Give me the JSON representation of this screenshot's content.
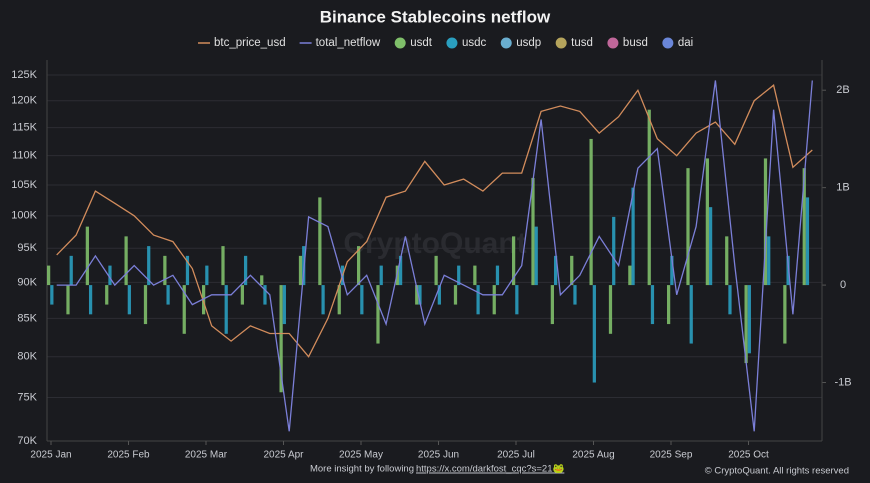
{
  "chart_data": {
    "type": "combo",
    "title": "Binance Stablecoins netflow",
    "annotations": [
      "More insight by following ",
      "https://x.com/darkfost_cqc?s=21🐸",
      "© CryptoQuant. All rights reserved",
      "CryptoQuant"
    ],
    "categories": [
      "2025 Jan",
      null,
      null,
      null,
      "2025 Feb",
      null,
      null,
      null,
      "2025 Mar",
      null,
      null,
      null,
      "2025 Apr",
      null,
      null,
      null,
      "2025 May",
      null,
      null,
      null,
      "2025 Jun",
      null,
      null,
      null,
      "2025 Jul",
      null,
      null,
      null,
      "2025 Aug",
      null,
      null,
      null,
      "2025 Sep",
      null,
      null,
      null,
      "2025 Oct",
      null,
      null,
      null
    ],
    "log_scale": true,
    "grid": true,
    "ylim": [
      70000,
      128000
    ],
    "yticks": [
      {
        "value": 70000,
        "label": "70K"
      },
      {
        "value": 75000,
        "label": "75K"
      },
      {
        "value": 80000,
        "label": "80K"
      },
      {
        "value": 85000,
        "label": "85K"
      },
      {
        "value": 90000,
        "label": "90K"
      },
      {
        "value": 95000,
        "label": "95K"
      },
      {
        "value": 100000,
        "label": "100K"
      },
      {
        "value": 105000,
        "label": "105K"
      },
      {
        "value": 110000,
        "label": "110K"
      },
      {
        "value": 115000,
        "label": "115K"
      },
      {
        "value": 120000,
        "label": "120K"
      },
      {
        "value": 125000,
        "label": "125K"
      }
    ],
    "y2lim": [
      -1600000000,
      2310000000
    ],
    "y2ticks": [
      {
        "value": -1000000000,
        "label": "-1B"
      },
      0,
      {
        "value": 1000000000,
        "label": "1B"
      },
      {
        "value": 2000000000,
        "label": "2B"
      }
    ],
    "series": [
      {
        "name": "btc_price_usd",
        "type": "line",
        "axis": "y",
        "color": "#d28c5c",
        "values": [
          94000,
          97000,
          104000,
          102000,
          100000,
          97000,
          96000,
          92000,
          84000,
          82000,
          84000,
          83000,
          83000,
          80000,
          85000,
          93000,
          96000,
          103000,
          104000,
          109000,
          105000,
          106000,
          104000,
          107000,
          107000,
          118000,
          119000,
          118000,
          114000,
          117000,
          122000,
          113000,
          110000,
          114000,
          116000,
          112000,
          120000,
          123000,
          108000,
          111000
        ]
      },
      {
        "name": "total_netflow",
        "type": "line",
        "axis": "y2",
        "color": "#7b7fd8",
        "values": [
          0,
          0,
          300000000,
          0,
          200000000,
          0,
          100000000,
          -200000000,
          -100000000,
          -100000000,
          100000000,
          -100000000,
          -1500000000,
          700000000,
          600000000,
          -100000000,
          100000000,
          -400000000,
          500000000,
          -400000000,
          100000000,
          0,
          -100000000,
          -100000000,
          200000000,
          1700000000,
          -100000000,
          100000000,
          500000000,
          200000000,
          1200000000,
          1400000000,
          -100000000,
          600000000,
          2100000000,
          200000000,
          -1500000000,
          1800000000,
          -300000000,
          2100000000
        ]
      },
      {
        "name": "usdt",
        "type": "bar",
        "axis": "y2",
        "color": "#7fbf6a",
        "values": [
          200000000,
          -300000000,
          600000000,
          -200000000,
          500000000,
          -400000000,
          300000000,
          -500000000,
          -300000000,
          400000000,
          -200000000,
          100000000,
          -1100000000,
          300000000,
          900000000,
          -300000000,
          400000000,
          -600000000,
          200000000,
          -200000000,
          300000000,
          -200000000,
          200000000,
          -300000000,
          500000000,
          1100000000,
          -400000000,
          300000000,
          1500000000,
          -500000000,
          200000000,
          1800000000,
          -400000000,
          1200000000,
          1300000000,
          500000000,
          -800000000,
          1300000000,
          -600000000,
          1200000000
        ]
      },
      {
        "name": "usdc",
        "type": "bar",
        "axis": "y2",
        "color": "#2a9fbf",
        "values": [
          -200000000,
          300000000,
          -300000000,
          200000000,
          -300000000,
          400000000,
          -200000000,
          300000000,
          200000000,
          -500000000,
          300000000,
          -200000000,
          -400000000,
          400000000,
          -300000000,
          200000000,
          -300000000,
          200000000,
          300000000,
          -200000000,
          -200000000,
          200000000,
          -300000000,
          200000000,
          -300000000,
          600000000,
          300000000,
          -200000000,
          -1000000000,
          700000000,
          1000000000,
          -400000000,
          300000000,
          -600000000,
          800000000,
          -300000000,
          -700000000,
          500000000,
          300000000,
          900000000
        ]
      },
      {
        "name": "usdp",
        "type": "bar",
        "axis": "y2",
        "color": "#6aaecf",
        "values": [
          0,
          0,
          0,
          0,
          0,
          0,
          0,
          0,
          0,
          0,
          0,
          0,
          0,
          0,
          0,
          0,
          0,
          0,
          0,
          0,
          0,
          0,
          0,
          0,
          0,
          0,
          0,
          0,
          0,
          0,
          0,
          0,
          0,
          0,
          0,
          0,
          0,
          0,
          0,
          0
        ]
      },
      {
        "name": "tusd",
        "type": "bar",
        "axis": "y2",
        "color": "#b5a45c",
        "values": [
          0,
          0,
          0,
          0,
          0,
          0,
          0,
          0,
          0,
          0,
          0,
          0,
          0,
          0,
          0,
          0,
          0,
          0,
          0,
          0,
          0,
          0,
          0,
          0,
          0,
          0,
          0,
          0,
          0,
          0,
          0,
          0,
          0,
          0,
          0,
          0,
          0,
          0,
          0,
          0
        ]
      },
      {
        "name": "busd",
        "type": "bar",
        "axis": "y2",
        "color": "#c0679a",
        "values": [
          0,
          0,
          0,
          0,
          0,
          0,
          0,
          0,
          0,
          0,
          0,
          0,
          0,
          0,
          0,
          0,
          0,
          0,
          0,
          0,
          0,
          0,
          0,
          0,
          0,
          0,
          0,
          0,
          0,
          0,
          0,
          0,
          0,
          0,
          0,
          0,
          0,
          0,
          0,
          0
        ]
      },
      {
        "name": "dai",
        "type": "bar",
        "axis": "y2",
        "color": "#6a86d8",
        "values": [
          0,
          0,
          0,
          0,
          0,
          0,
          0,
          0,
          0,
          0,
          0,
          0,
          0,
          0,
          0,
          0,
          0,
          0,
          0,
          0,
          0,
          0,
          0,
          0,
          0,
          0,
          0,
          0,
          0,
          0,
          0,
          0,
          0,
          0,
          0,
          0,
          0,
          0,
          0,
          0
        ]
      }
    ]
  }
}
